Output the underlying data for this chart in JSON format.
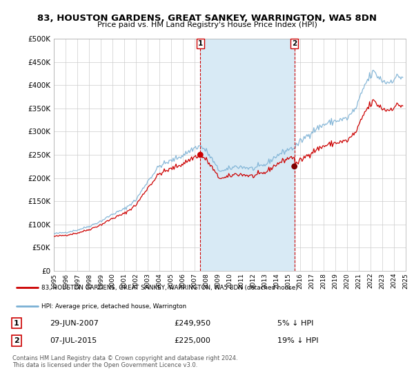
{
  "title": "83, HOUSTON GARDENS, GREAT SANKEY, WARRINGTON, WA5 8DN",
  "subtitle": "Price paid vs. HM Land Registry's House Price Index (HPI)",
  "background_color": "#ffffff",
  "plot_bg_color": "#ffffff",
  "grid_color": "#cccccc",
  "hpi_color": "#7ab0d4",
  "sale_color": "#cc0000",
  "vline_color": "#cc0000",
  "shade_color": "#d8eaf5",
  "ylim": [
    0,
    500000
  ],
  "yticks": [
    0,
    50000,
    100000,
    150000,
    200000,
    250000,
    300000,
    350000,
    400000,
    450000,
    500000
  ],
  "ytick_labels": [
    "£0",
    "£50K",
    "£100K",
    "£150K",
    "£200K",
    "£250K",
    "£300K",
    "£350K",
    "£400K",
    "£450K",
    "£500K"
  ],
  "xtick_years": [
    1995,
    1996,
    1997,
    1998,
    1999,
    2000,
    2001,
    2002,
    2003,
    2004,
    2005,
    2006,
    2007,
    2008,
    2009,
    2010,
    2011,
    2012,
    2013,
    2014,
    2015,
    2016,
    2017,
    2018,
    2019,
    2020,
    2021,
    2022,
    2023,
    2024,
    2025
  ],
  "sale1_x": 2007.49,
  "sale1_y": 249950,
  "sale1_date": "29-JUN-2007",
  "sale1_price": "£249,950",
  "sale1_pct": "5% ↓ HPI",
  "sale2_x": 2015.51,
  "sale2_y": 225000,
  "sale2_date": "07-JUL-2015",
  "sale2_price": "£225,000",
  "sale2_pct": "19% ↓ HPI",
  "legend_line1": "83, HOUSTON GARDENS, GREAT SANKEY, WARRINGTON, WA5 8DN (detached house)",
  "legend_line2": "HPI: Average price, detached house, Warrington",
  "footer": "Contains HM Land Registry data © Crown copyright and database right 2024.\nThis data is licensed under the Open Government Licence v3.0."
}
